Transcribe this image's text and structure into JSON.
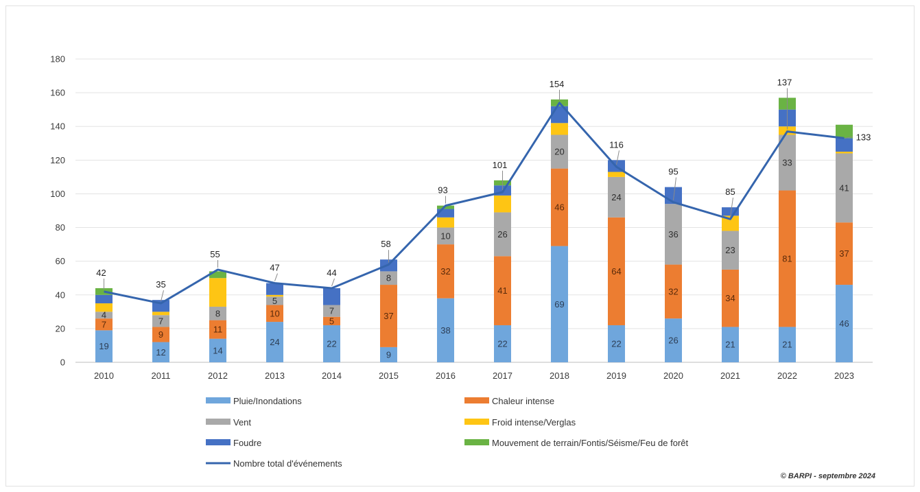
{
  "chart_data": {
    "type": "bar",
    "stacked": true,
    "categories": [
      "2010",
      "2011",
      "2012",
      "2013",
      "2014",
      "2015",
      "2016",
      "2017",
      "2018",
      "2019",
      "2020",
      "2021",
      "2022",
      "2023"
    ],
    "ylim": [
      0,
      180
    ],
    "yticks": [
      0,
      20,
      40,
      60,
      80,
      100,
      120,
      140,
      160,
      180
    ],
    "grid": true,
    "legend_position": "bottom",
    "series": [
      {
        "name": "Pluie/Inondations",
        "color": "#6fa6dc",
        "label_color": "#2d3e55",
        "values": [
          19,
          12,
          14,
          24,
          22,
          9,
          38,
          22,
          69,
          22,
          26,
          21,
          21,
          46
        ],
        "labels": [
          "19",
          "12",
          "14",
          "24",
          "22",
          "9",
          "38",
          "22",
          "69",
          "22",
          "26",
          "21",
          "21",
          "46"
        ]
      },
      {
        "name": "Chaleur intense",
        "color": "#ec7d31",
        "label_color": "#5a2a0a",
        "values": [
          7,
          9,
          11,
          10,
          5,
          37,
          32,
          41,
          46,
          64,
          32,
          34,
          81,
          37
        ],
        "labels": [
          "7",
          "9",
          "11",
          "10",
          "5",
          "37",
          "32",
          "41",
          "46",
          "64",
          "32",
          "34",
          "81",
          "37"
        ]
      },
      {
        "name": "Vent",
        "color": "#a9a9a9",
        "label_color": "#2f2f2f",
        "values": [
          4,
          7,
          8,
          5,
          7,
          8,
          10,
          26,
          20,
          24,
          36,
          23,
          33,
          41
        ],
        "labels": [
          "4",
          "7",
          "8",
          "5",
          "7",
          "8",
          "10",
          "26",
          "20",
          "24",
          "36",
          "23",
          "33",
          "41"
        ]
      },
      {
        "name": "Froid intense/Verglas",
        "color": "#fec514",
        "label_color": "#333333",
        "values": [
          5,
          2,
          17,
          1,
          0,
          0,
          6,
          10,
          7,
          3,
          0,
          9,
          5,
          1
        ],
        "labels": [
          "",
          "",
          "",
          "",
          "",
          "",
          "",
          "",
          "",
          "",
          "",
          "",
          "",
          ""
        ]
      },
      {
        "name": "Foudre",
        "color": "#4571c4",
        "label_color": "#ffffff",
        "values": [
          5,
          7,
          0,
          7,
          10,
          7,
          5,
          6,
          10,
          7,
          10,
          5,
          10,
          8
        ],
        "labels": [
          "",
          "",
          "",
          "",
          "",
          "",
          "",
          "",
          "",
          "",
          "",
          "",
          "",
          ""
        ]
      },
      {
        "name": "Mouvement de terrain/Fontis/Séisme/Feu de forêt",
        "color": "#6ab344",
        "label_color": "#ffffff",
        "values": [
          4,
          0,
          4,
          0,
          0,
          0,
          2,
          3,
          4,
          0,
          0,
          0,
          7,
          8
        ],
        "labels": [
          "",
          "",
          "",
          "",
          "",
          "",
          "",
          "",
          "",
          "",
          "",
          "",
          "",
          ""
        ]
      }
    ],
    "line": {
      "name": "Nombre total d'événements",
      "color": "#3565ad",
      "values": [
        42,
        35,
        55,
        47,
        44,
        58,
        93,
        101,
        154,
        116,
        95,
        85,
        137,
        133
      ],
      "labels": [
        "42",
        "35",
        "55",
        "47",
        "44",
        "58",
        "93",
        "101",
        "154",
        "116",
        "95",
        "85",
        "137",
        "133"
      ]
    },
    "credit": "© BARPI - septembre 2024"
  }
}
